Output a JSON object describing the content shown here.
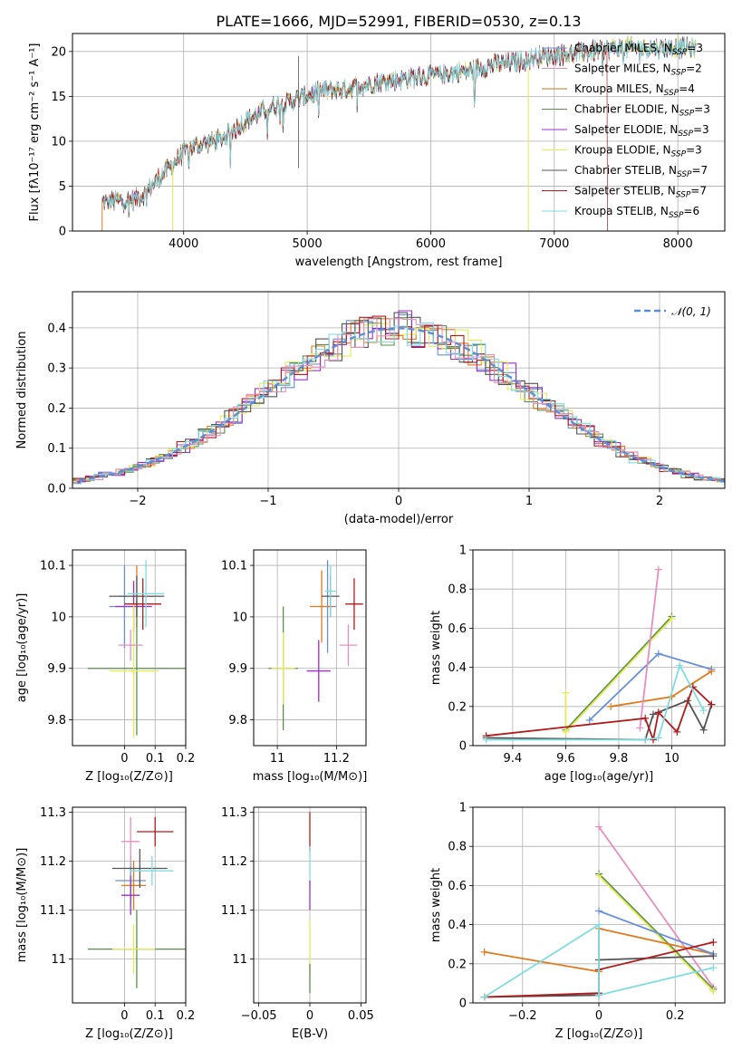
{
  "colors": [
    "#6a8fd8",
    "#e07a1f",
    "#5c8f4e",
    "#9b30c8",
    "#e6ea5a",
    "#555555",
    "#b01c1c",
    "#e68fbf",
    "#c07a20",
    "#80dce0"
  ],
  "chart_data": [
    {
      "id": "spectrum",
      "type": "line",
      "title": "PLATE=1666, MJD=52991, FIBERID=0530, z=0.13",
      "xlabel": "wavelength [Angstrom, rest frame]",
      "ylabel": "Flux [fλ10⁻¹⁷ erg cm⁻² s⁻¹ A⁻¹]",
      "xlim": [
        3100,
        8380
      ],
      "ylim": [
        0,
        22
      ],
      "xticks": [
        4000,
        5000,
        6000,
        7000,
        8000
      ],
      "yticks": [
        0,
        5,
        10,
        15,
        20
      ],
      "continuum": {
        "x": [
          3340,
          3600,
          3700,
          3800,
          3900,
          4000,
          4100,
          4300,
          4500,
          4700,
          4900,
          5100,
          5300,
          5500,
          5700,
          5900,
          6100,
          6300,
          6500,
          6700,
          6900,
          7100,
          7300,
          7500
        ],
        "y": [
          3.2,
          3.5,
          4.3,
          6.0,
          7.2,
          8.8,
          9.6,
          10.2,
          12.2,
          13.8,
          14.6,
          15.6,
          15.8,
          16.4,
          16.8,
          17.2,
          17.5,
          17.8,
          18.5,
          18.8,
          19.5,
          19.7,
          20.0,
          20.4
        ]
      },
      "legend": [
        {
          "label": "Chabrier MILES, N",
          "sub": "SSP",
          "suffix": "=3",
          "color": "#6a8fd8"
        },
        {
          "label": "Salpeter MILES, N",
          "sub": "SSP",
          "suffix": "=2",
          "color": "#e68fbf"
        },
        {
          "label": "Kroupa MILES, N",
          "sub": "SSP",
          "suffix": "=4",
          "color": "#c07a20"
        },
        {
          "label": "Chabrier ELODIE, N",
          "sub": "SSP",
          "suffix": "=3",
          "color": "#5c8f4e"
        },
        {
          "label": "Salpeter ELODIE, N",
          "sub": "SSP",
          "suffix": "=3",
          "color": "#9b30c8"
        },
        {
          "label": "Kroupa ELODIE, N",
          "sub": "SSP",
          "suffix": "=3",
          "color": "#e6ea5a"
        },
        {
          "label": "Chabrier STELIB, N",
          "sub": "SSP",
          "suffix": "=7",
          "color": "#555555"
        },
        {
          "label": "Salpeter STELIB, N",
          "sub": "SSP",
          "suffix": "=7",
          "color": "#b01c1c"
        },
        {
          "label": "Kroupa STELIB, N",
          "sub": "SSP",
          "suffix": "=6",
          "color": "#80dce0"
        }
      ]
    },
    {
      "id": "residuals",
      "type": "line",
      "xlabel": "(data-model)/error",
      "ylabel": "Normed distribution",
      "xlim": [
        -2.5,
        2.5
      ],
      "ylim": [
        0,
        0.49
      ],
      "xticks": [
        -2,
        -1,
        0,
        1,
        2
      ],
      "yticks": [
        0.0,
        0.1,
        0.2,
        0.3,
        0.4
      ],
      "legend_label": "𝒩(0, 1)",
      "legend_color": "#5b8fd8",
      "gaussian": {
        "mean": 0,
        "sigma": 1
      }
    },
    {
      "id": "age-vs-Z",
      "type": "scatter",
      "xlabel": "Z [log₁₀(Z/Z⊙)]",
      "ylabel": "age  [log₁₀(age/yr)]",
      "xlim": [
        -0.17,
        0.2
      ],
      "ylim": [
        9.75,
        10.13
      ],
      "xticks": [
        0.0,
        0.1,
        0.2
      ],
      "yticks": [
        9.8,
        9.9,
        10.0,
        10.1
      ],
      "points": [
        {
          "x": 0.0,
          "y": 10.02,
          "xerr": 0.05,
          "yerr": 0.08,
          "color": "#6a8fd8"
        },
        {
          "x": 0.04,
          "y": 10.04,
          "xerr": 0.06,
          "yerr": 0.06,
          "color": "#e07a1f"
        },
        {
          "x": 0.04,
          "y": 9.9,
          "xerr": 0.16,
          "yerr": 0.13,
          "color": "#5c8f4e"
        },
        {
          "x": 0.03,
          "y": 10.02,
          "xerr": 0.06,
          "yerr": 0.05,
          "color": "#9b30c8"
        },
        {
          "x": 0.03,
          "y": 9.895,
          "xerr": 0.08,
          "yerr": 0.13,
          "color": "#e6ea5a"
        },
        {
          "x": 0.04,
          "y": 10.04,
          "xerr": 0.09,
          "yerr": 0.04,
          "color": "#555555"
        },
        {
          "x": 0.06,
          "y": 10.025,
          "xerr": 0.06,
          "yerr": 0.05,
          "color": "#b01c1c"
        },
        {
          "x": 0.02,
          "y": 9.945,
          "xerr": 0.04,
          "yerr": 0.03,
          "color": "#e68fbf"
        },
        {
          "x": 0.07,
          "y": 10.045,
          "xerr": 0.06,
          "yerr": 0.065,
          "color": "#80dce0"
        }
      ]
    },
    {
      "id": "age-vs-mass",
      "type": "scatter",
      "xlabel": "mass [log₁₀(M/M⊙)]",
      "ylabel": "",
      "xlim": [
        10.92,
        11.3
      ],
      "ylim": [
        9.75,
        10.13
      ],
      "xticks": [
        11.0,
        11.2
      ],
      "yticks": [
        9.8,
        9.9,
        10.0,
        10.1
      ],
      "points": [
        {
          "x": 11.17,
          "y": 10.02,
          "xerr": 0.03,
          "yerr": 0.09,
          "color": "#6a8fd8"
        },
        {
          "x": 11.15,
          "y": 10.02,
          "xerr": 0.04,
          "yerr": 0.07,
          "color": "#e07a1f"
        },
        {
          "x": 11.02,
          "y": 9.9,
          "xerr": 0.05,
          "yerr": 0.12,
          "color": "#5c8f4e"
        },
        {
          "x": 11.14,
          "y": 9.895,
          "xerr": 0.04,
          "yerr": 0.06,
          "color": "#9b30c8"
        },
        {
          "x": 11.02,
          "y": 9.9,
          "xerr": 0.04,
          "yerr": 0.07,
          "color": "#e6ea5a"
        },
        {
          "x": 11.18,
          "y": 10.04,
          "xerr": 0.03,
          "yerr": 0.04,
          "color": "#555555"
        },
        {
          "x": 11.26,
          "y": 10.025,
          "xerr": 0.03,
          "yerr": 0.05,
          "color": "#b01c1c"
        },
        {
          "x": 11.24,
          "y": 9.945,
          "xerr": 0.03,
          "yerr": 0.04,
          "color": "#e68fbf"
        },
        {
          "x": 11.18,
          "y": 10.05,
          "xerr": 0.02,
          "yerr": 0.05,
          "color": "#80dce0"
        }
      ]
    },
    {
      "id": "weight-vs-age",
      "type": "line",
      "xlabel": "age  [log₁₀(age/yr)]",
      "ylabel": "mass weight",
      "xlim": [
        9.25,
        10.2
      ],
      "ylim": [
        0,
        1.0
      ],
      "xticks": [
        9.4,
        9.6,
        9.8,
        10.0
      ],
      "yticks": [
        0.0,
        0.2,
        0.4,
        0.6,
        0.8,
        1.0
      ],
      "series": [
        {
          "color": "#6a8fd8",
          "x": [
            9.69,
            9.95,
            10.15
          ],
          "y": [
            0.13,
            0.47,
            0.39
          ]
        },
        {
          "color": "#e07a1f",
          "x": [
            9.77,
            10.0,
            10.15
          ],
          "y": [
            0.2,
            0.25,
            0.38
          ]
        },
        {
          "color": "#5c8f4e",
          "x": [
            9.6,
            10.0
          ],
          "y": [
            0.08,
            0.66
          ]
        },
        {
          "color": "#e6ea5a",
          "x": [
            9.6,
            9.6,
            10.0
          ],
          "y": [
            0.27,
            0.07,
            0.65
          ]
        },
        {
          "color": "#e68fbf",
          "x": [
            9.88,
            9.95
          ],
          "y": [
            0.09,
            0.9
          ]
        },
        {
          "color": "#555555",
          "x": [
            9.3,
            9.9,
            9.93,
            10.06,
            10.12,
            10.15
          ],
          "y": [
            0.04,
            0.03,
            0.16,
            0.23,
            0.08,
            0.21
          ]
        },
        {
          "color": "#b01c1c",
          "x": [
            9.3,
            9.9,
            9.93,
            9.95,
            10.02,
            10.08,
            10.15
          ],
          "y": [
            0.05,
            0.14,
            0.03,
            0.17,
            0.07,
            0.3,
            0.21
          ]
        },
        {
          "color": "#80dce0",
          "x": [
            9.3,
            9.9,
            9.95,
            10.03,
            10.12
          ],
          "y": [
            0.03,
            0.03,
            0.04,
            0.41,
            0.18
          ]
        }
      ]
    },
    {
      "id": "mass-vs-Z",
      "type": "scatter",
      "xlabel": "Z [log₁₀(Z/Z⊙)]",
      "ylabel": "mass [log₁₀(M/M⊙)]",
      "xlim": [
        -0.17,
        0.2
      ],
      "ylim": [
        10.91,
        11.31
      ],
      "xticks": [
        0.0,
        0.1,
        0.2
      ],
      "yticks": [
        11.0,
        11.1,
        11.2,
        11.3
      ],
      "points": [
        {
          "x": 0.02,
          "y": 11.16,
          "xerr": 0.05,
          "yerr": 0.05,
          "color": "#6a8fd8"
        },
        {
          "x": 0.03,
          "y": 11.15,
          "xerr": 0.04,
          "yerr": 0.05,
          "color": "#e07a1f"
        },
        {
          "x": 0.04,
          "y": 11.02,
          "xerr": 0.16,
          "yerr": 0.08,
          "color": "#5c8f4e"
        },
        {
          "x": 0.02,
          "y": 11.13,
          "xerr": 0.03,
          "yerr": 0.04,
          "color": "#9b30c8"
        },
        {
          "x": 0.03,
          "y": 11.02,
          "xerr": 0.07,
          "yerr": 0.05,
          "color": "#e6ea5a"
        },
        {
          "x": 0.05,
          "y": 11.185,
          "xerr": 0.09,
          "yerr": 0.04,
          "color": "#555555"
        },
        {
          "x": 0.1,
          "y": 11.26,
          "xerr": 0.06,
          "yerr": 0.03,
          "color": "#b01c1c"
        },
        {
          "x": 0.02,
          "y": 11.24,
          "xerr": 0.03,
          "yerr": 0.05,
          "color": "#e68fbf"
        },
        {
          "x": 0.09,
          "y": 11.18,
          "xerr": 0.07,
          "yerr": 0.03,
          "color": "#80dce0"
        }
      ]
    },
    {
      "id": "mass-vs-EBV",
      "type": "scatter",
      "xlabel": "E(B-V)",
      "ylabel": "",
      "xlim": [
        -0.055,
        0.055
      ],
      "ylim": [
        10.91,
        11.31
      ],
      "xticks": [
        -0.05,
        0.0,
        0.05
      ],
      "yticks": [
        11.0,
        11.1,
        11.2,
        11.3
      ],
      "points": [
        {
          "x": 0.0,
          "y": 11.26,
          "xerr": 0,
          "yerr": 0.04,
          "color": "#b01c1c"
        },
        {
          "x": 0.0,
          "y": 11.19,
          "xerr": 0,
          "yerr": 0.04,
          "color": "#80dce0"
        },
        {
          "x": 0.0,
          "y": 11.13,
          "xerr": 0,
          "yerr": 0.03,
          "color": "#9b30c8"
        },
        {
          "x": 0.0,
          "y": 11.02,
          "xerr": 0,
          "yerr": 0.06,
          "color": "#e6ea5a"
        },
        {
          "x": 0.0,
          "y": 10.96,
          "xerr": 0,
          "yerr": 0.03,
          "color": "#5c8f4e"
        }
      ]
    },
    {
      "id": "weight-vs-Z",
      "type": "line",
      "xlabel": "Z [log₁₀(Z/Z⊙)]",
      "ylabel": "mass weight",
      "xlim": [
        -0.33,
        0.33
      ],
      "ylim": [
        0,
        1.0
      ],
      "xticks": [
        -0.2,
        0.0,
        0.2
      ],
      "yticks": [
        0.0,
        0.2,
        0.4,
        0.6,
        0.8,
        1.0
      ],
      "series": [
        {
          "color": "#e68fbf",
          "x": [
            0.0,
            0.3
          ],
          "y": [
            0.9,
            0.08
          ]
        },
        {
          "color": "#5c8f4e",
          "x": [
            0.0,
            0.3
          ],
          "y": [
            0.66,
            0.07
          ]
        },
        {
          "color": "#e6ea5a",
          "x": [
            0.0,
            0.3
          ],
          "y": [
            0.65,
            0.06
          ]
        },
        {
          "color": "#e07a1f",
          "x": [
            -0.3,
            0.0,
            0.0,
            0.3
          ],
          "y": [
            0.26,
            0.16,
            0.38,
            0.25
          ]
        },
        {
          "color": "#6a8fd8",
          "x": [
            0.0,
            0.3
          ],
          "y": [
            0.47,
            0.25
          ]
        },
        {
          "color": "#555555",
          "x": [
            -0.3,
            0.0,
            0.0,
            0.3
          ],
          "y": [
            0.03,
            0.04,
            0.22,
            0.24
          ]
        },
        {
          "color": "#b01c1c",
          "x": [
            -0.3,
            0.0,
            0.0,
            0.3
          ],
          "y": [
            0.03,
            0.05,
            0.17,
            0.31
          ]
        },
        {
          "color": "#80dce0",
          "x": [
            -0.3,
            0.0,
            0.0,
            0.3
          ],
          "y": [
            0.03,
            0.4,
            0.04,
            0.18
          ]
        }
      ]
    }
  ]
}
